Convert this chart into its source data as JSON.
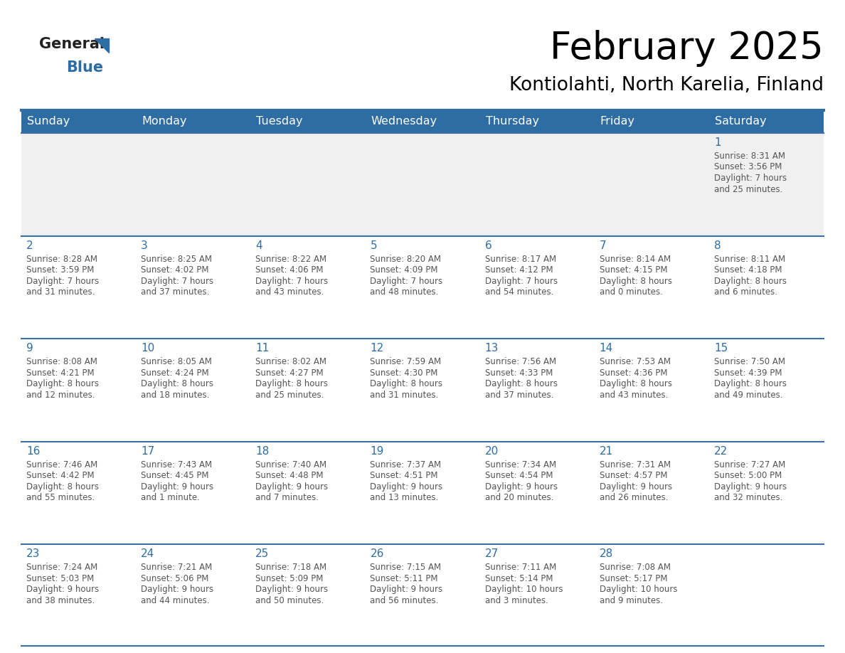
{
  "title": "February 2025",
  "subtitle": "Kontiolahti, North Karelia, Finland",
  "header_bg": "#2E6DA4",
  "header_text_color": "#FFFFFF",
  "cell_bg_light": "#F0F0F0",
  "cell_bg_white": "#FFFFFF",
  "day_number_color": "#2E6DA4",
  "detail_text_color": "#555555",
  "grid_color": "#3A6EA5",
  "days_of_week": [
    "Sunday",
    "Monday",
    "Tuesday",
    "Wednesday",
    "Thursday",
    "Friday",
    "Saturday"
  ],
  "weeks": [
    [
      {
        "day": "",
        "info": ""
      },
      {
        "day": "",
        "info": ""
      },
      {
        "day": "",
        "info": ""
      },
      {
        "day": "",
        "info": ""
      },
      {
        "day": "",
        "info": ""
      },
      {
        "day": "",
        "info": ""
      },
      {
        "day": "1",
        "info": "Sunrise: 8:31 AM\nSunset: 3:56 PM\nDaylight: 7 hours\nand 25 minutes."
      }
    ],
    [
      {
        "day": "2",
        "info": "Sunrise: 8:28 AM\nSunset: 3:59 PM\nDaylight: 7 hours\nand 31 minutes."
      },
      {
        "day": "3",
        "info": "Sunrise: 8:25 AM\nSunset: 4:02 PM\nDaylight: 7 hours\nand 37 minutes."
      },
      {
        "day": "4",
        "info": "Sunrise: 8:22 AM\nSunset: 4:06 PM\nDaylight: 7 hours\nand 43 minutes."
      },
      {
        "day": "5",
        "info": "Sunrise: 8:20 AM\nSunset: 4:09 PM\nDaylight: 7 hours\nand 48 minutes."
      },
      {
        "day": "6",
        "info": "Sunrise: 8:17 AM\nSunset: 4:12 PM\nDaylight: 7 hours\nand 54 minutes."
      },
      {
        "day": "7",
        "info": "Sunrise: 8:14 AM\nSunset: 4:15 PM\nDaylight: 8 hours\nand 0 minutes."
      },
      {
        "day": "8",
        "info": "Sunrise: 8:11 AM\nSunset: 4:18 PM\nDaylight: 8 hours\nand 6 minutes."
      }
    ],
    [
      {
        "day": "9",
        "info": "Sunrise: 8:08 AM\nSunset: 4:21 PM\nDaylight: 8 hours\nand 12 minutes."
      },
      {
        "day": "10",
        "info": "Sunrise: 8:05 AM\nSunset: 4:24 PM\nDaylight: 8 hours\nand 18 minutes."
      },
      {
        "day": "11",
        "info": "Sunrise: 8:02 AM\nSunset: 4:27 PM\nDaylight: 8 hours\nand 25 minutes."
      },
      {
        "day": "12",
        "info": "Sunrise: 7:59 AM\nSunset: 4:30 PM\nDaylight: 8 hours\nand 31 minutes."
      },
      {
        "day": "13",
        "info": "Sunrise: 7:56 AM\nSunset: 4:33 PM\nDaylight: 8 hours\nand 37 minutes."
      },
      {
        "day": "14",
        "info": "Sunrise: 7:53 AM\nSunset: 4:36 PM\nDaylight: 8 hours\nand 43 minutes."
      },
      {
        "day": "15",
        "info": "Sunrise: 7:50 AM\nSunset: 4:39 PM\nDaylight: 8 hours\nand 49 minutes."
      }
    ],
    [
      {
        "day": "16",
        "info": "Sunrise: 7:46 AM\nSunset: 4:42 PM\nDaylight: 8 hours\nand 55 minutes."
      },
      {
        "day": "17",
        "info": "Sunrise: 7:43 AM\nSunset: 4:45 PM\nDaylight: 9 hours\nand 1 minute."
      },
      {
        "day": "18",
        "info": "Sunrise: 7:40 AM\nSunset: 4:48 PM\nDaylight: 9 hours\nand 7 minutes."
      },
      {
        "day": "19",
        "info": "Sunrise: 7:37 AM\nSunset: 4:51 PM\nDaylight: 9 hours\nand 13 minutes."
      },
      {
        "day": "20",
        "info": "Sunrise: 7:34 AM\nSunset: 4:54 PM\nDaylight: 9 hours\nand 20 minutes."
      },
      {
        "day": "21",
        "info": "Sunrise: 7:31 AM\nSunset: 4:57 PM\nDaylight: 9 hours\nand 26 minutes."
      },
      {
        "day": "22",
        "info": "Sunrise: 7:27 AM\nSunset: 5:00 PM\nDaylight: 9 hours\nand 32 minutes."
      }
    ],
    [
      {
        "day": "23",
        "info": "Sunrise: 7:24 AM\nSunset: 5:03 PM\nDaylight: 9 hours\nand 38 minutes."
      },
      {
        "day": "24",
        "info": "Sunrise: 7:21 AM\nSunset: 5:06 PM\nDaylight: 9 hours\nand 44 minutes."
      },
      {
        "day": "25",
        "info": "Sunrise: 7:18 AM\nSunset: 5:09 PM\nDaylight: 9 hours\nand 50 minutes."
      },
      {
        "day": "26",
        "info": "Sunrise: 7:15 AM\nSunset: 5:11 PM\nDaylight: 9 hours\nand 56 minutes."
      },
      {
        "day": "27",
        "info": "Sunrise: 7:11 AM\nSunset: 5:14 PM\nDaylight: 10 hours\nand 3 minutes."
      },
      {
        "day": "28",
        "info": "Sunrise: 7:08 AM\nSunset: 5:17 PM\nDaylight: 10 hours\nand 9 minutes."
      },
      {
        "day": "",
        "info": ""
      }
    ]
  ],
  "logo_general_color": "#222222",
  "logo_blue_color": "#2E6DA4",
  "logo_triangle_color": "#2E6DA4"
}
